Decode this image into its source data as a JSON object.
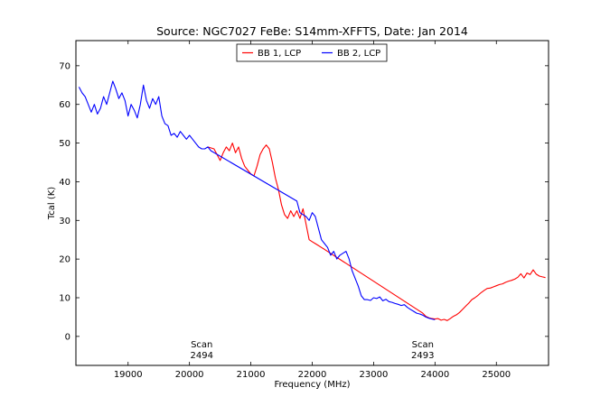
{
  "chart_data": {
    "type": "line",
    "title": "Source: NGC7027 FeBe: S14mm-XFFTS, Date: Jan 2014",
    "xlabel": "Frequency (MHz)",
    "ylabel": "Tcal (K)",
    "xlim": [
      18150,
      25850
    ],
    "ylim": [
      -7.5,
      76.5
    ],
    "xticks": [
      19000,
      20000,
      21000,
      22000,
      23000,
      24000,
      25000
    ],
    "yticks": [
      0,
      10,
      20,
      30,
      40,
      50,
      60,
      70
    ],
    "legend_position": "upper center",
    "grid": false,
    "series": [
      {
        "name": "BB 1, LCP",
        "color": "#ff0000",
        "x": [
          20300,
          20400,
          20450,
          20500,
          20550,
          20600,
          20650,
          20700,
          20750,
          20800,
          20850,
          20900,
          20950,
          21000,
          21050,
          21100,
          21150,
          21200,
          21250,
          21300,
          21350,
          21400,
          21450,
          21500,
          21550,
          21600,
          21650,
          21700,
          21750,
          21800,
          21850,
          21900,
          21950,
          22000,
          22050,
          22100,
          22150,
          22200,
          23800,
          23850,
          23900,
          23950,
          24000,
          24050,
          24100,
          24150,
          24200,
          24250,
          24300,
          24350,
          24400,
          24450,
          24500,
          24550,
          24600,
          24650,
          24700,
          24750,
          24800,
          24850,
          24900,
          24950,
          25000,
          25050,
          25100,
          25150,
          25200,
          25250,
          25300,
          25350,
          25400,
          25450,
          25500,
          25550,
          25600,
          25650,
          25700,
          25750,
          25800
        ],
        "y": [
          49,
          48.5,
          47,
          45.5,
          47.5,
          49,
          48,
          50,
          47.5,
          49,
          46,
          44,
          43,
          42,
          41.5,
          44,
          47,
          48.5,
          49.5,
          48.5,
          45,
          41,
          38,
          34,
          31.5,
          30.5,
          32.5,
          31,
          32.5,
          30.5,
          33,
          29,
          25,
          24.5,
          24,
          23.5,
          23,
          22.5,
          6,
          5.2,
          4.8,
          4.6,
          4.5,
          4.6,
          4.2,
          4.4,
          4.1,
          4.6,
          5.2,
          5.6,
          6.2,
          7,
          7.8,
          8.6,
          9.5,
          10,
          10.6,
          11.3,
          11.9,
          12.4,
          12.5,
          12.8,
          13.1,
          13.4,
          13.6,
          14,
          14.3,
          14.5,
          14.8,
          15.3,
          16.2,
          15.1,
          16.4,
          16,
          17.2,
          16.1,
          15.6,
          15.4,
          15.2
        ]
      },
      {
        "name": "BB 2, LCP",
        "color": "#0000ff",
        "x": [
          18200,
          18250,
          18300,
          18350,
          18400,
          18450,
          18500,
          18550,
          18600,
          18650,
          18700,
          18750,
          18800,
          18850,
          18900,
          18950,
          19000,
          19050,
          19100,
          19150,
          19200,
          19250,
          19300,
          19350,
          19400,
          19450,
          19500,
          19550,
          19600,
          19650,
          19700,
          19750,
          19800,
          19850,
          19900,
          19950,
          20000,
          20050,
          20100,
          20150,
          20200,
          20250,
          20300,
          20350,
          21750,
          21800,
          21850,
          21900,
          21950,
          22000,
          22050,
          22100,
          22150,
          22200,
          22250,
          22300,
          22350,
          22400,
          22450,
          22500,
          22550,
          22600,
          22650,
          22700,
          22750,
          22800,
          22850,
          22900,
          22950,
          23000,
          23050,
          23100,
          23150,
          23200,
          23250,
          23300,
          23350,
          23400,
          23450,
          23500,
          23550,
          23600,
          23650,
          23700,
          23750,
          23800,
          23850,
          23900,
          23950,
          24000
        ],
        "y": [
          64.5,
          63,
          62,
          60,
          58,
          60,
          57.5,
          59,
          62,
          60,
          63,
          66,
          64,
          61.5,
          63,
          61,
          57,
          60,
          58.5,
          56.5,
          60,
          65,
          61,
          59,
          61.5,
          60,
          62,
          57,
          55,
          54.5,
          52,
          52.5,
          51.5,
          53,
          52,
          51,
          52,
          51,
          50,
          49,
          48.5,
          48.5,
          49,
          48,
          35,
          32,
          31.5,
          31,
          30,
          32,
          31,
          28,
          25,
          24,
          23,
          21,
          22,
          20,
          21,
          21.5,
          22,
          20,
          17,
          15,
          13,
          10.5,
          9.5,
          9.5,
          9.3,
          10,
          9.8,
          10.2,
          9.2,
          9.6,
          9,
          8.8,
          8.5,
          8.3,
          8,
          8.2,
          7.5,
          7,
          6.5,
          6,
          5.8,
          5.5,
          5,
          4.7,
          4.5,
          4.3
        ]
      }
    ],
    "annotations": [
      {
        "text": [
          "Scan",
          "2494"
        ],
        "x": 20200
      },
      {
        "text": [
          "Scan",
          "2493"
        ],
        "x": 23800
      }
    ]
  }
}
